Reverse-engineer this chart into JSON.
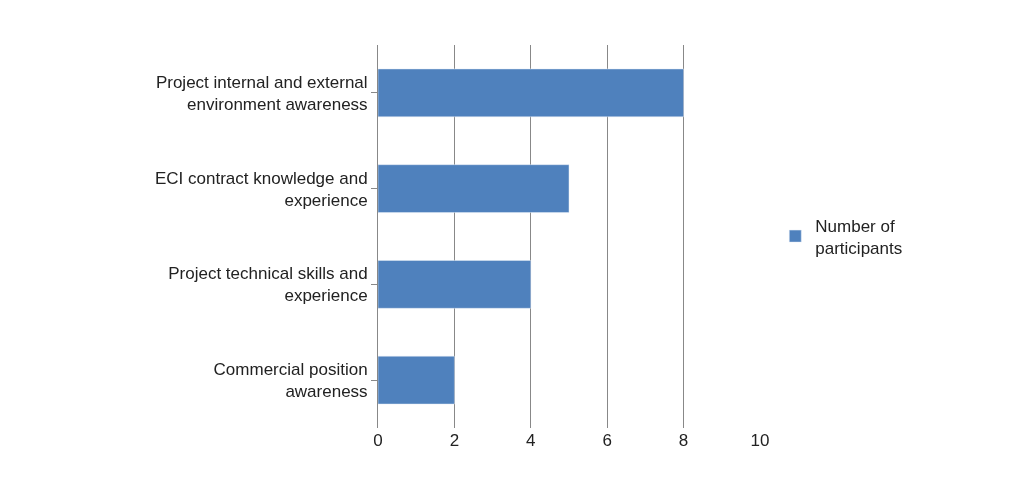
{
  "chart_data": {
    "type": "bar",
    "orientation": "horizontal",
    "categories": [
      "Project internal and external\nenvironment awareness",
      "ECI contract knowledge and\nexperience",
      "Project technical skills and\nexperience",
      "Commercial position\nawareness"
    ],
    "series": [
      {
        "name": "Number of\nparticipants",
        "color": "#4f81bd",
        "values": [
          8,
          5,
          4,
          2
        ]
      }
    ],
    "xlim": [
      0,
      10
    ],
    "xticks": [
      0,
      2,
      4,
      6,
      8,
      10
    ],
    "grid": "x",
    "legend": "right"
  }
}
